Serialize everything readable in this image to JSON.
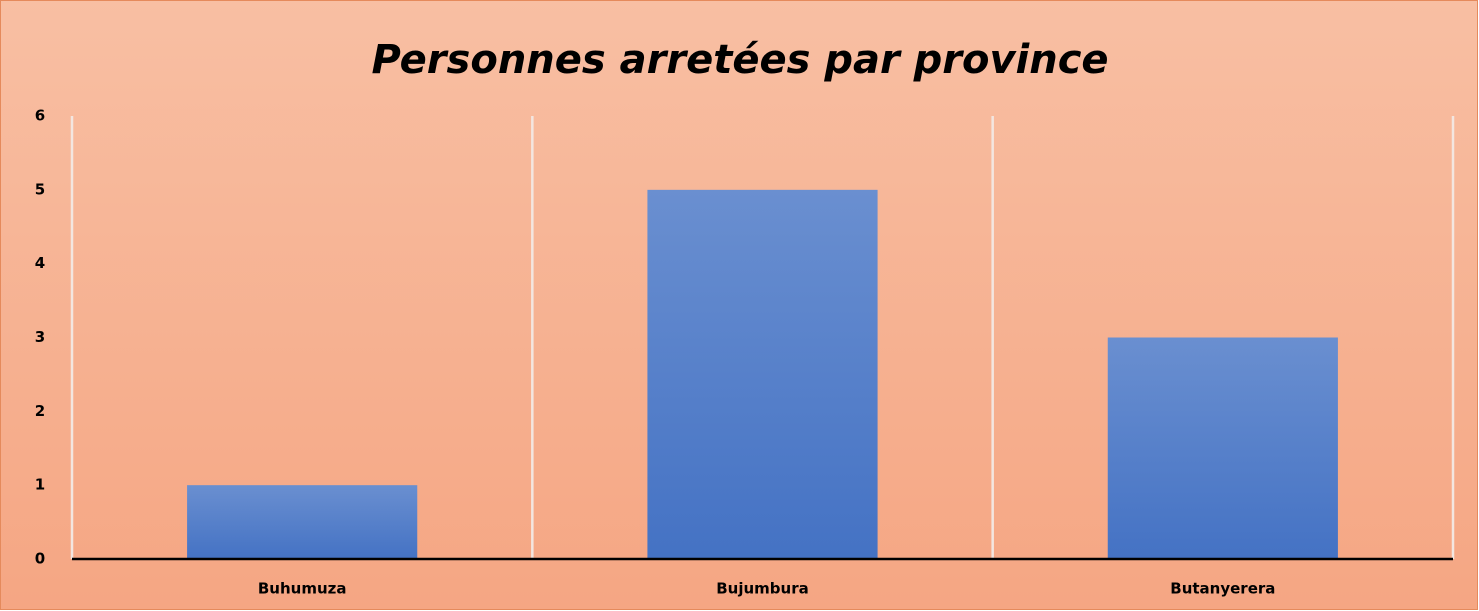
{
  "chart_data": {
    "type": "bar",
    "title": "Personnes arretées par province",
    "categories": [
      "Buhumuza",
      "Bujumbura",
      "Butanyerera"
    ],
    "values": [
      1,
      5,
      3
    ],
    "color": "#4472c4",
    "ylim": [
      0,
      6
    ],
    "yticks": [
      0,
      1,
      2,
      3,
      4,
      5,
      6
    ],
    "grid": true
  }
}
